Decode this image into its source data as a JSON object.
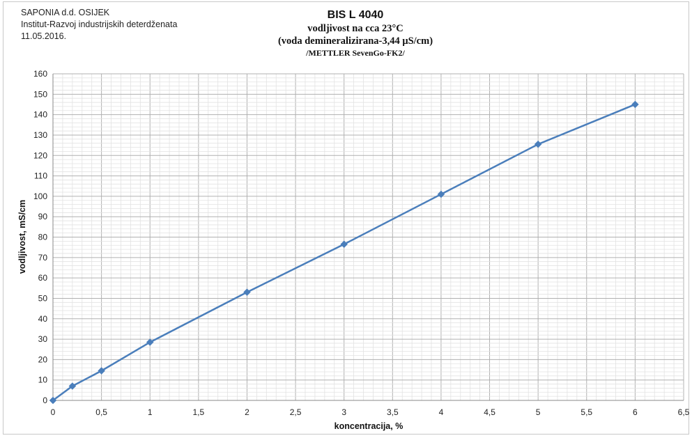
{
  "header": {
    "company": "SAPONIA d.d. OSIJEK",
    "institute": "Institut-Razvoj industrijskih deterdženata",
    "date": "11.05.2016."
  },
  "chart_data": {
    "type": "line",
    "title": "BIS L 4040",
    "subtitle_lines": [
      "vodljivost na cca 23°C",
      "(voda demineralizirana-3,44 μS/cm)",
      "/METTLER SevenGo-FK2/"
    ],
    "xlabel": "koncentracija, %",
    "ylabel": "vodljivost, mS/cm",
    "xlim": [
      0,
      6.5
    ],
    "ylim": [
      0,
      160
    ],
    "x_ticks": [
      0,
      0.5,
      1,
      1.5,
      2,
      2.5,
      3,
      3.5,
      4,
      4.5,
      5,
      5.5,
      6,
      6.5
    ],
    "x_tick_labels": [
      "0",
      "0,5",
      "1",
      "1,5",
      "2",
      "2,5",
      "3",
      "3,5",
      "4",
      "4,5",
      "5",
      "5,5",
      "6",
      "6,5"
    ],
    "y_ticks": [
      0,
      10,
      20,
      30,
      40,
      50,
      60,
      70,
      80,
      90,
      100,
      110,
      120,
      130,
      140,
      150,
      160
    ],
    "grid": true,
    "legend": "none",
    "series": [
      {
        "color": "#4a7ebb",
        "marker": "diamond",
        "points": [
          {
            "x": 0,
            "y": 0
          },
          {
            "x": 0.2,
            "y": 7
          },
          {
            "x": 0.5,
            "y": 14.5
          },
          {
            "x": 1,
            "y": 28.5
          },
          {
            "x": 2,
            "y": 53
          },
          {
            "x": 3,
            "y": 76.5
          },
          {
            "x": 4,
            "y": 101
          },
          {
            "x": 5,
            "y": 125.5
          },
          {
            "x": 6,
            "y": 145
          }
        ]
      }
    ]
  }
}
